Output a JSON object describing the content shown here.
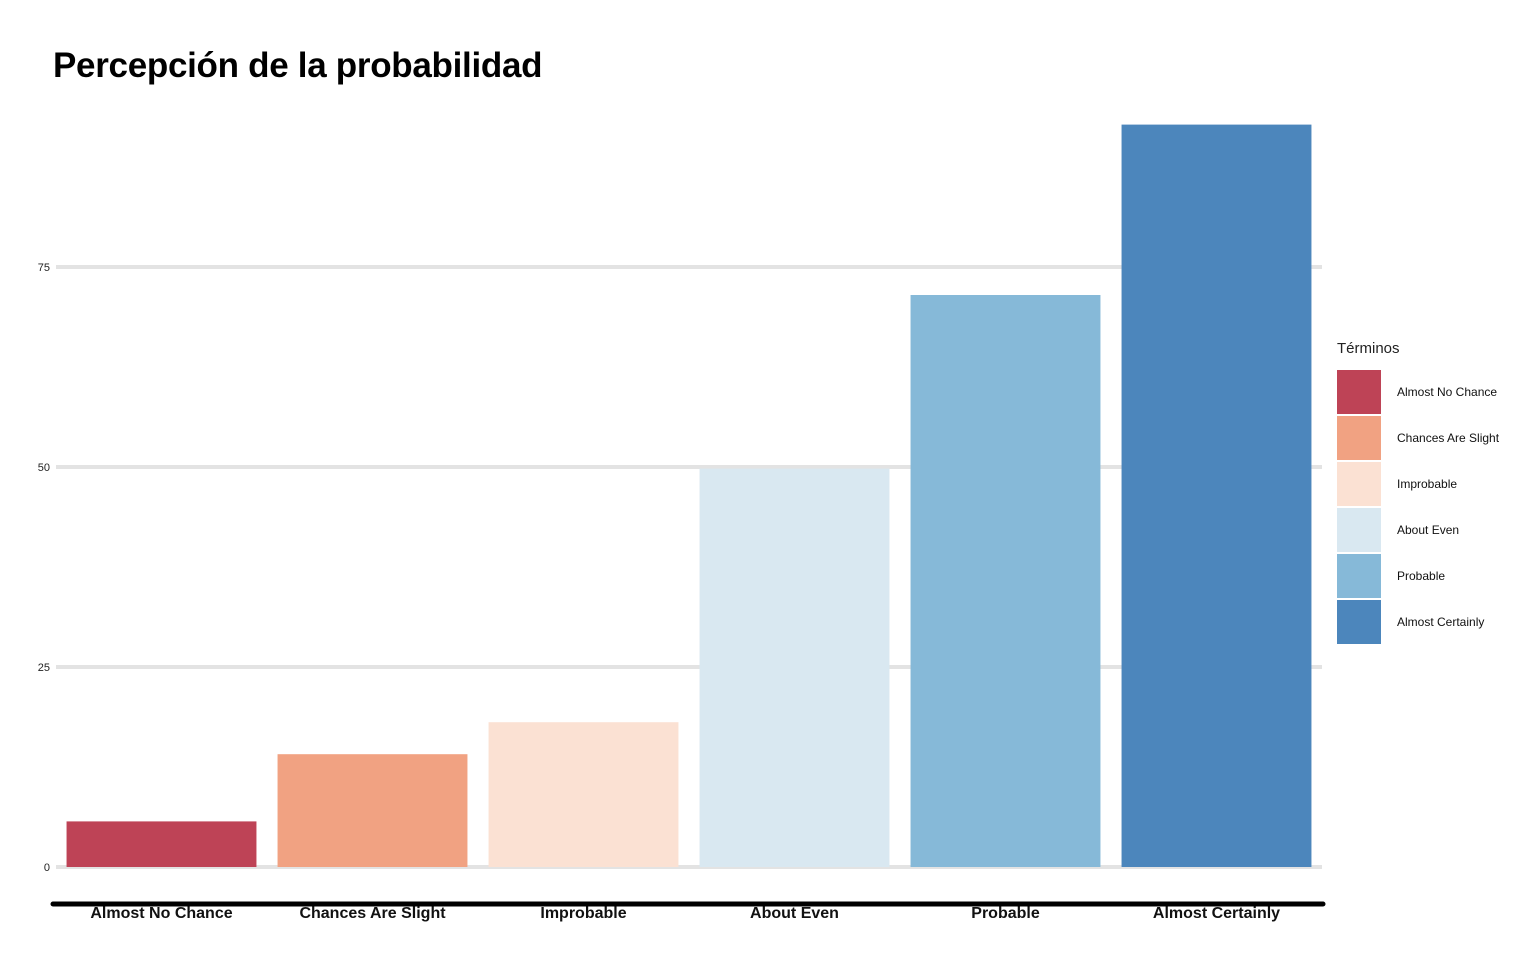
{
  "chart_data": {
    "type": "bar",
    "title": "Percepción de la probabilidad",
    "xlabel": "",
    "ylabel": "",
    "categories": [
      "Almost No Chance",
      "Chances Are Slight",
      "Improbable",
      "About Even",
      "Probable",
      "Almost Certainly"
    ],
    "values": [
      5.7,
      14.1,
      18.1,
      49.8,
      71.5,
      92.8
    ],
    "colors": [
      "#be4356",
      "#f1a282",
      "#fbe1d3",
      "#d9e8f1",
      "#86b9d8",
      "#4c86bc"
    ],
    "yticks": [
      0,
      25,
      50,
      75
    ],
    "ylim": [
      0,
      95
    ],
    "grid": true,
    "legend": {
      "title": "Términos",
      "position": "right",
      "entries": [
        "Almost No Chance",
        "Chances Are Slight",
        "Improbable",
        "About Even",
        "Probable",
        "Almost Certainly"
      ]
    }
  }
}
